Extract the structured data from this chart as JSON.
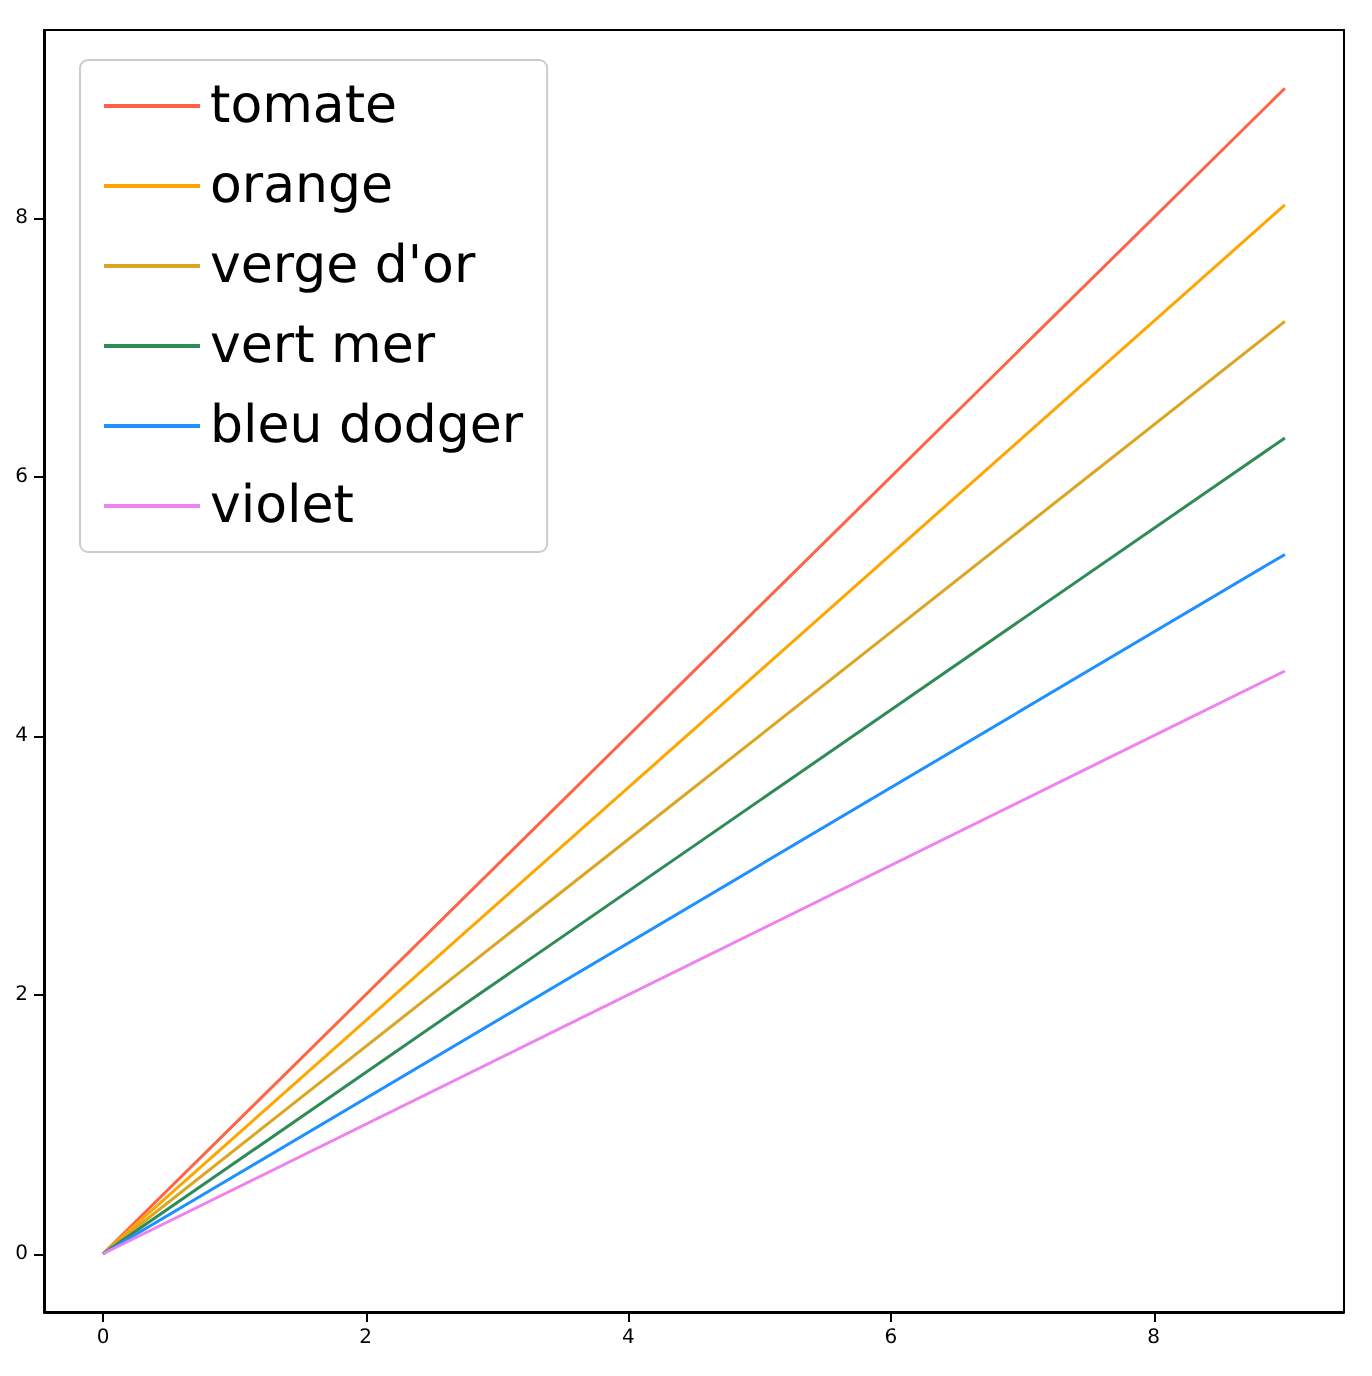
{
  "chart_data": {
    "type": "line",
    "x": [
      0,
      9
    ],
    "series": [
      {
        "name": "tomate",
        "color": "#ff6347",
        "values": [
          0,
          9
        ]
      },
      {
        "name": "orange",
        "color": "#ffa500",
        "values": [
          0,
          8.1
        ]
      },
      {
        "name": "verge d'or",
        "color": "#daa520",
        "values": [
          0,
          7.2
        ]
      },
      {
        "name": "vert mer",
        "color": "#2e8b57",
        "values": [
          0,
          6.3
        ]
      },
      {
        "name": "bleu dodger",
        "color": "#1e90ff",
        "values": [
          0,
          5.4
        ]
      },
      {
        "name": "violet",
        "color": "#ee82ee",
        "values": [
          0,
          4.5
        ]
      }
    ],
    "xlim": [
      -0.45,
      9.45
    ],
    "ylim": [
      -0.45,
      9.45
    ],
    "xticks": [
      0,
      2,
      4,
      6,
      8
    ],
    "yticks": [
      0,
      2,
      4,
      6,
      8
    ],
    "grid": false,
    "legend": "top left",
    "marker": "none",
    "line_style": "solid"
  }
}
